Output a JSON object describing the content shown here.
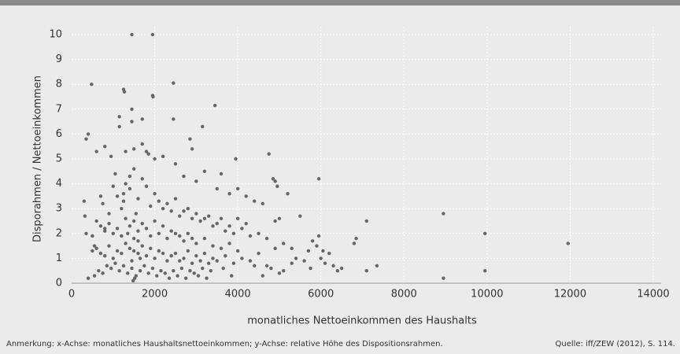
{
  "chart_data": {
    "type": "scatter",
    "x_label": "monatliches Nettoeinkommen des Haushalts",
    "y_label": "Disporahmen / Nettoeinkommen",
    "note": "Anmerkung: x-Achse: monatliches Haushaltsnettoeinkommen; y-Achse: relative Höhe des Dispositionsrahmen.",
    "source": "Quelle: iff/ZEW (2012), S. 114.",
    "color": "#666666",
    "grid": true,
    "xlim": [
      0,
      14000
    ],
    "xticks": [
      0,
      2000,
      4000,
      6000,
      8000,
      10000,
      12000,
      14000
    ],
    "ylim": [
      0,
      10
    ],
    "yticks": [
      0,
      1,
      2,
      3,
      4,
      5,
      6,
      7,
      8,
      9,
      10
    ],
    "x": [
      1450,
      1950,
      480,
      2450,
      1250,
      1270,
      1950,
      1960,
      3450,
      1450,
      1700,
      2450,
      3150,
      1450,
      1150,
      1150,
      400,
      350,
      2850,
      1700,
      3950,
      4750,
      5950,
      8950,
      9950,
      11950,
      8950,
      9950,
      7100,
      7350,
      6850,
      6800,
      7100,
      600,
      800,
      950,
      1050,
      1300,
      1500,
      1800,
      1850,
      2000,
      2200,
      2500,
      2900,
      3200,
      3600,
      4850,
      4900,
      4950,
      5200,
      5500,
      4000,
      4200,
      4400,
      4600,
      3800,
      3500,
      3000,
      2700,
      300,
      320,
      350,
      500,
      550,
      700,
      750,
      800,
      900,
      1000,
      1100,
      1200,
      1250,
      1300,
      1400,
      1500,
      1600,
      1700,
      1800,
      1900,
      2000,
      2100,
      2200,
      2300,
      2400,
      2500,
      2600,
      2700,
      2800,
      2900,
      3000,
      3100,
      3200,
      3300,
      3400,
      3500,
      3600,
      3700,
      3800,
      3900,
      4000,
      4100,
      4200,
      4300,
      4500,
      4700,
      4900,
      5000,
      5100,
      5300,
      600,
      700,
      800,
      900,
      1000,
      1100,
      1200,
      1300,
      1400,
      1500,
      1600,
      1700,
      1800,
      1900,
      2000,
      2100,
      2200,
      2300,
      2400,
      2500,
      2600,
      2700,
      2800,
      2900,
      3000,
      3200,
      3400,
      3600,
      3800,
      4000,
      500,
      600,
      700,
      800,
      900,
      1000,
      1100,
      1200,
      1300,
      1400,
      1500,
      1600,
      1700,
      1800,
      1900,
      2000,
      2100,
      2200,
      2300,
      2400,
      2500,
      2600,
      2700,
      2800,
      2900,
      3000,
      3100,
      3200,
      3300,
      3400,
      3500,
      3700,
      3900,
      4100,
      4300,
      4500,
      4700,
      4900,
      5100,
      5300,
      400,
      550,
      650,
      750,
      850,
      950,
      1050,
      1150,
      1250,
      1350,
      1450,
      1550,
      1650,
      1750,
      1850,
      1950,
      2050,
      2150,
      2250,
      2350,
      2450,
      2550,
      2650,
      2750,
      2850,
      2950,
      3050,
      3150,
      3250,
      3350,
      5400,
      5600,
      5800,
      5900,
      6000,
      6100,
      6200,
      6300,
      6400,
      6500,
      5700,
      5750,
      5950,
      6050,
      4600,
      4800,
      5000,
      4400,
      3850,
      3650,
      1450,
      1500,
      1550,
      1480,
      1520,
      1350,
      1650,
      1250,
      1400,
      1600
    ],
    "values": [
      10,
      10,
      8,
      8.05,
      7.8,
      7.7,
      7.55,
      7.5,
      7.15,
      7,
      6.6,
      6.6,
      6.3,
      6.5,
      6.7,
      6.3,
      6,
      5.8,
      5.8,
      5.6,
      5,
      5.2,
      4.2,
      2.8,
      2,
      1.6,
      0.2,
      0.5,
      2.5,
      0.7,
      1.8,
      1.6,
      0.5,
      5.3,
      5.5,
      5.1,
      4.4,
      5.3,
      5.4,
      5.3,
      5.2,
      5.0,
      5.1,
      4.8,
      5.4,
      4.5,
      4.4,
      4.2,
      4.1,
      3.9,
      3.6,
      2.7,
      3.8,
      3.5,
      3.3,
      3.2,
      3.6,
      3.8,
      4.1,
      4.3,
      3.3,
      2.7,
      2.0,
      1.9,
      1.5,
      3.5,
      3.2,
      2.2,
      2.8,
      3.9,
      3.5,
      3.0,
      3.3,
      4.0,
      3.8,
      4.6,
      3.4,
      4.2,
      3.9,
      3.1,
      3.6,
      3.3,
      3.0,
      3.2,
      2.9,
      3.4,
      2.7,
      2.9,
      3.0,
      2.6,
      2.8,
      2.5,
      2.6,
      2.7,
      2.3,
      2.4,
      2.6,
      2.1,
      2.3,
      2.0,
      2.6,
      2.2,
      2.4,
      1.9,
      2.0,
      1.8,
      2.5,
      2.6,
      1.6,
      1.4,
      2.5,
      2.3,
      2.1,
      2.4,
      2.0,
      2.2,
      1.9,
      2.6,
      2.3,
      2.5,
      2.1,
      2.4,
      2.2,
      1.9,
      2.5,
      2.0,
      2.3,
      1.8,
      2.1,
      2.0,
      1.9,
      1.7,
      2.0,
      1.8,
      1.6,
      1.8,
      1.5,
      1.4,
      1.6,
      1.3,
      1.3,
      1.4,
      1.2,
      1.1,
      1.5,
      1.0,
      1.3,
      1.2,
      1.6,
      1.4,
      1.3,
      1.2,
      1.5,
      1.1,
      1.4,
      1.0,
      1.3,
      1.2,
      0.9,
      1.1,
      1.2,
      0.9,
      1.0,
      1.3,
      0.8,
      1.1,
      0.9,
      1.2,
      0.8,
      1.0,
      0.9,
      1.1,
      0.8,
      1.0,
      0.9,
      1.2,
      0.7,
      1.4,
      0.5,
      0.8,
      0.2,
      0.3,
      0.5,
      0.4,
      0.7,
      0.6,
      0.8,
      0.5,
      0.7,
      0.4,
      0.6,
      0.3,
      0.5,
      0.7,
      0.4,
      0.6,
      0.3,
      0.5,
      0.4,
      0.2,
      0.5,
      0.3,
      0.6,
      0.2,
      0.5,
      0.4,
      0.3,
      0.6,
      0.2,
      0.5,
      1.0,
      0.9,
      1.7,
      1.5,
      1.0,
      0.8,
      1.2,
      0.7,
      0.5,
      0.6,
      1.3,
      0.6,
      1.9,
      1.3,
      0.3,
      0.6,
      0.4,
      0.7,
      0.3,
      0.6,
      0.9,
      1.8,
      2.8,
      0.1,
      0.2,
      2.0,
      1.0,
      3.6,
      4.3,
      1.7
    ]
  }
}
